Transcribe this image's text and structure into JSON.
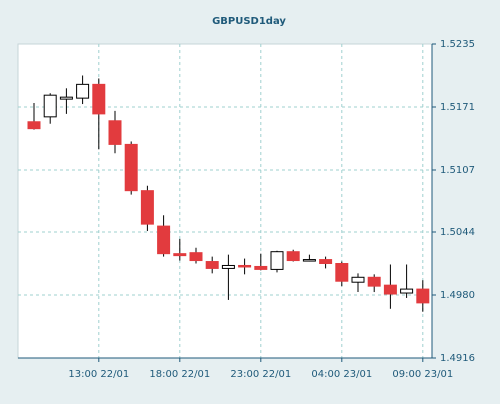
{
  "chart_data": {
    "type": "candlestick",
    "title": "GBPUSD1day",
    "xlabel": "",
    "ylabel": "",
    "ylim": [
      1.4916,
      1.5235
    ],
    "y_ticks": [
      "1.5235",
      "1.5171",
      "1.5107",
      "1.5044",
      "1.4980",
      "1.4916"
    ],
    "x_ticks": [
      {
        "index": 4,
        "label": "13:00 22/01"
      },
      {
        "index": 9,
        "label": "18:00 22/01"
      },
      {
        "index": 14,
        "label": "23:00 22/01"
      },
      {
        "index": 19,
        "label": "04:00 23/01"
      },
      {
        "index": 24,
        "label": "09:00 23/01"
      }
    ],
    "grid": true,
    "legend": "none",
    "colors": {
      "up_fill": "#ffffff",
      "up_border": "#000000",
      "down_fill": "#e23b3e",
      "wick": "#000000",
      "plot_bg": "#ffffff",
      "outer_bg": "#e6eff1",
      "grid": "#9fd0cf",
      "axis_text": "#1f5a7a",
      "frame": "#c6d4d8"
    },
    "candles": [
      {
        "open": 1.5156,
        "high": 1.5175,
        "low": 1.5148,
        "close": 1.5149
      },
      {
        "open": 1.5161,
        "high": 1.5185,
        "low": 1.5154,
        "close": 1.5183
      },
      {
        "open": 1.5179,
        "high": 1.519,
        "low": 1.5164,
        "close": 1.5181
      },
      {
        "open": 1.518,
        "high": 1.5203,
        "low": 1.5174,
        "close": 1.5194
      },
      {
        "open": 1.5194,
        "high": 1.52,
        "low": 1.5128,
        "close": 1.5164
      },
      {
        "open": 1.5157,
        "high": 1.5167,
        "low": 1.5124,
        "close": 1.5133
      },
      {
        "open": 1.5133,
        "high": 1.5136,
        "low": 1.5082,
        "close": 1.5086
      },
      {
        "open": 1.5086,
        "high": 1.5091,
        "low": 1.5045,
        "close": 1.5052
      },
      {
        "open": 1.505,
        "high": 1.5061,
        "low": 1.5019,
        "close": 1.5022
      },
      {
        "open": 1.5022,
        "high": 1.5037,
        "low": 1.5015,
        "close": 1.502
      },
      {
        "open": 1.5023,
        "high": 1.5028,
        "low": 1.5012,
        "close": 1.5015
      },
      {
        "open": 1.5014,
        "high": 1.5019,
        "low": 1.5002,
        "close": 1.5007
      },
      {
        "open": 1.5007,
        "high": 1.5021,
        "low": 1.4975,
        "close": 1.501
      },
      {
        "open": 1.501,
        "high": 1.5017,
        "low": 1.5001,
        "close": 1.5009
      },
      {
        "open": 1.5009,
        "high": 1.5022,
        "low": 1.5005,
        "close": 1.5006
      },
      {
        "open": 1.5006,
        "high": 1.5025,
        "low": 1.5003,
        "close": 1.5024
      },
      {
        "open": 1.5024,
        "high": 1.5026,
        "low": 1.5014,
        "close": 1.5015
      },
      {
        "open": 1.5016,
        "high": 1.5021,
        "low": 1.5014,
        "close": 1.5016
      },
      {
        "open": 1.5016,
        "high": 1.5019,
        "low": 1.5007,
        "close": 1.5012
      },
      {
        "open": 1.5012,
        "high": 1.5014,
        "low": 1.4989,
        "close": 1.4994
      },
      {
        "open": 1.4993,
        "high": 1.5002,
        "low": 1.4983,
        "close": 1.4998
      },
      {
        "open": 1.4998,
        "high": 1.5001,
        "low": 1.4983,
        "close": 1.4989
      },
      {
        "open": 1.499,
        "high": 1.5011,
        "low": 1.4966,
        "close": 1.4981
      },
      {
        "open": 1.4982,
        "high": 1.5011,
        "low": 1.4977,
        "close": 1.4986
      },
      {
        "open": 1.4986,
        "high": 1.4995,
        "low": 1.4963,
        "close": 1.4972
      }
    ]
  }
}
